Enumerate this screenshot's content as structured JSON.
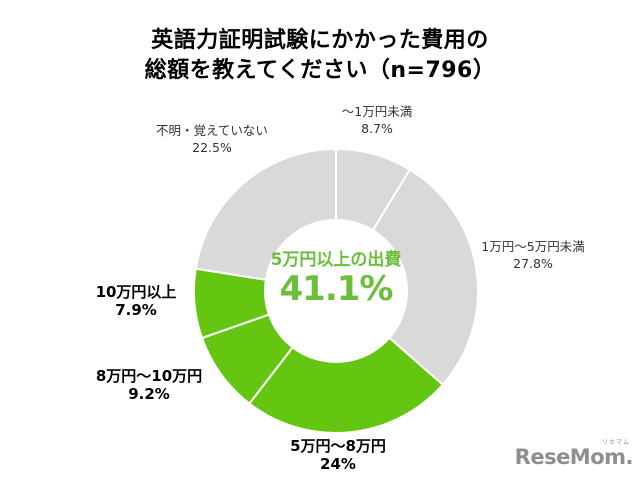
{
  "page": {
    "title_line1": "英語力証明試験にかかった費用の",
    "title_line2": "総額を教えてください（n=796）"
  },
  "colors": {
    "slice_green": "#65C611",
    "slice_gray": "#D9D9D9",
    "slice_border": "#FFFFFF",
    "center_text_green": "#6CBF3C",
    "label_text": "#333333",
    "bold_label_text": "#000000",
    "logo_gray": "#8F8F8F"
  },
  "chart_data": {
    "type": "pie",
    "subtype": "donut",
    "title": "英語力証明試験にかかった費用の総額を教えてください（n=796）",
    "sample_size_label": "n=796",
    "start_angle_deg": 0,
    "direction": "clockwise",
    "inner_radius_ratio": 0.5,
    "legend_position": "none",
    "categories": [
      "～1万円未満",
      "1万円～5万円未満",
      "5万円～8万円",
      "8万円～10万円",
      "10万円以上",
      "不明・覚えていない"
    ],
    "values": [
      8.7,
      27.8,
      24,
      9.2,
      7.9,
      22.5
    ],
    "segments": [
      {
        "label": "～1万円未満",
        "value": 8.7,
        "pct_label": "8.7%",
        "color": "#D9D9D9",
        "highlight": false
      },
      {
        "label": "1万円～5万円未満",
        "value": 27.8,
        "pct_label": "27.8%",
        "color": "#D9D9D9",
        "highlight": false
      },
      {
        "label": "5万円～8万円",
        "value": 24,
        "pct_label": "24%",
        "color": "#65C611",
        "highlight": true
      },
      {
        "label": "8万円～10万円",
        "value": 9.2,
        "pct_label": "9.2%",
        "color": "#65C611",
        "highlight": true
      },
      {
        "label": "10万円以上",
        "value": 7.9,
        "pct_label": "7.9%",
        "color": "#65C611",
        "highlight": true
      },
      {
        "label": "不明・覚えていない",
        "value": 22.5,
        "pct_label": "22.5%",
        "color": "#D9D9D9",
        "highlight": false
      }
    ],
    "center_label": {
      "caption": "5万円以上の出費",
      "value": "41.1%"
    }
  },
  "logo": {
    "text": "ReseMom.",
    "ruby": "リセマム"
  }
}
